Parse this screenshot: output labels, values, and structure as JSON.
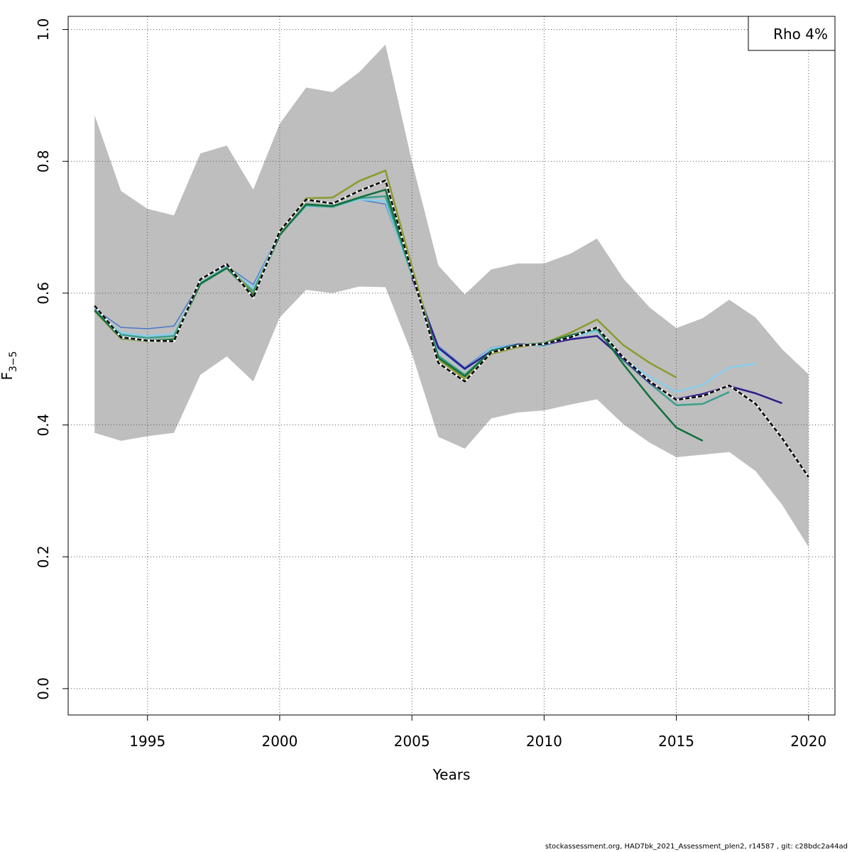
{
  "chart_data": {
    "type": "line",
    "xlabel": "Years",
    "ylabel": "F",
    "ylabel_sub": "3−5",
    "xlim": [
      1992,
      2021
    ],
    "ylim": [
      -0.04,
      1.02
    ],
    "x_ticks": [
      1995,
      2000,
      2005,
      2010,
      2015,
      2020
    ],
    "y_ticks": [
      0.0,
      0.2,
      0.4,
      0.6,
      0.8,
      1.0
    ],
    "y_tick_labels": [
      "0.0",
      "0.2",
      "0.4",
      "0.6",
      "0.8",
      "1.0"
    ],
    "grid": true,
    "legend": {
      "position": "top-right",
      "text": "Rho 4%"
    },
    "band": {
      "color": "#bebebe",
      "x": [
        1993,
        1994,
        1995,
        1996,
        1997,
        1998,
        1999,
        2000,
        2001,
        2002,
        2003,
        2004,
        2005,
        2006,
        2007,
        2008,
        2009,
        2010,
        2011,
        2012,
        2013,
        2014,
        2015,
        2016,
        2017,
        2018,
        2019,
        2020
      ],
      "upper": [
        0.87,
        0.755,
        0.728,
        0.718,
        0.812,
        0.824,
        0.757,
        0.857,
        0.912,
        0.905,
        0.935,
        0.977,
        0.8,
        0.642,
        0.598,
        0.636,
        0.645,
        0.645,
        0.66,
        0.683,
        0.622,
        0.578,
        0.547,
        0.562,
        0.59,
        0.563,
        0.515,
        0.477
      ],
      "lower": [
        0.388,
        0.376,
        0.383,
        0.388,
        0.476,
        0.504,
        0.466,
        0.563,
        0.605,
        0.6,
        0.61,
        0.609,
        0.508,
        0.382,
        0.364,
        0.41,
        0.419,
        0.422,
        0.431,
        0.439,
        0.401,
        0.373,
        0.351,
        0.355,
        0.359,
        0.33,
        0.279,
        0.215
      ]
    },
    "series": [
      {
        "color": "#4a78c9",
        "width": 1.5,
        "dashed": false,
        "x": [
          1993,
          1994,
          1995,
          1996,
          1997,
          1998,
          1999,
          2000,
          2001,
          2002,
          2003,
          2004,
          2005,
          2006,
          2007,
          2008,
          2009,
          2010,
          2011
        ],
        "values": [
          0.576,
          0.548,
          0.546,
          0.55,
          0.616,
          0.641,
          0.613,
          0.691,
          0.733,
          0.733,
          0.742,
          0.735,
          0.628,
          0.52,
          0.487,
          0.517,
          0.523,
          0.522,
          0.532
        ]
      },
      {
        "color": "#87ceeb",
        "width": 2.5,
        "dashed": false,
        "x": [
          1993,
          1994,
          1995,
          1996,
          1997,
          1998,
          1999,
          2000,
          2001,
          2002,
          2003,
          2004,
          2005,
          2006,
          2007,
          2008,
          2009,
          2010,
          2011,
          2012,
          2013,
          2014,
          2015,
          2016,
          2017,
          2018
        ],
        "values": [
          0.574,
          0.54,
          0.535,
          0.538,
          0.616,
          0.64,
          0.608,
          0.69,
          0.732,
          0.731,
          0.742,
          0.74,
          0.626,
          0.515,
          0.484,
          0.516,
          0.522,
          0.52,
          0.533,
          0.542,
          0.5,
          0.473,
          0.45,
          0.461,
          0.487,
          0.493
        ]
      },
      {
        "color": "#3aa08c",
        "width": 2.5,
        "dashed": false,
        "x": [
          1993,
          1994,
          1995,
          1996,
          1997,
          1998,
          1999,
          2000,
          2001,
          2002,
          2003,
          2004,
          2005,
          2006,
          2007,
          2008,
          2009,
          2010,
          2011,
          2012,
          2013,
          2014,
          2015,
          2016,
          2017
        ],
        "values": [
          0.574,
          0.537,
          0.532,
          0.535,
          0.615,
          0.639,
          0.603,
          0.689,
          0.733,
          0.731,
          0.744,
          0.747,
          0.628,
          0.505,
          0.476,
          0.513,
          0.522,
          0.521,
          0.535,
          0.545,
          0.498,
          0.463,
          0.43,
          0.432,
          0.45
        ]
      },
      {
        "color": "#2f1a8c",
        "width": 2.5,
        "dashed": false,
        "x": [
          2005,
          2006,
          2007,
          2008,
          2009,
          2010,
          2011,
          2012,
          2013,
          2014,
          2015,
          2016,
          2017,
          2018,
          2019
        ],
        "values": [
          0.624,
          0.517,
          0.485,
          0.512,
          0.522,
          0.522,
          0.53,
          0.535,
          0.5,
          0.464,
          0.439,
          0.447,
          0.459,
          0.448,
          0.433
        ]
      },
      {
        "color": "#8c9a2c",
        "width": 2.5,
        "dashed": false,
        "x": [
          1993,
          1994,
          1995,
          1996,
          1997,
          1998,
          1999,
          2000,
          2001,
          2002,
          2003,
          2004,
          2005,
          2006,
          2007,
          2008,
          2009,
          2010,
          2011,
          2012,
          2013,
          2014,
          2015
        ],
        "values": [
          0.573,
          0.531,
          0.527,
          0.53,
          0.62,
          0.644,
          0.598,
          0.692,
          0.744,
          0.745,
          0.77,
          0.786,
          0.64,
          0.5,
          0.47,
          0.508,
          0.518,
          0.524,
          0.54,
          0.56,
          0.521,
          0.494,
          0.472
        ]
      },
      {
        "color": "#10703a",
        "width": 2.5,
        "dashed": false,
        "x": [
          1993,
          1994,
          1995,
          1996,
          1997,
          1998,
          1999,
          2000,
          2001,
          2002,
          2003,
          2004,
          2005,
          2006,
          2007,
          2008,
          2009,
          2010,
          2011,
          2012,
          2013,
          2014,
          2015,
          2016
        ],
        "values": [
          0.574,
          0.532,
          0.528,
          0.53,
          0.614,
          0.638,
          0.597,
          0.688,
          0.735,
          0.732,
          0.745,
          0.757,
          0.63,
          0.502,
          0.474,
          0.512,
          0.521,
          0.524,
          0.536,
          0.547,
          0.492,
          0.442,
          0.396,
          0.376
        ]
      },
      {
        "color": "#000000",
        "width": 2.5,
        "dashed": true,
        "x": [
          1993,
          1994,
          1995,
          1996,
          1997,
          1998,
          1999,
          2000,
          2001,
          2002,
          2003,
          2004,
          2005,
          2006,
          2007,
          2008,
          2009,
          2010,
          2011,
          2012,
          2013,
          2014,
          2015,
          2016,
          2017,
          2018,
          2019,
          2020
        ],
        "values": [
          0.581,
          0.533,
          0.528,
          0.527,
          0.621,
          0.644,
          0.593,
          0.694,
          0.742,
          0.736,
          0.755,
          0.771,
          0.632,
          0.494,
          0.466,
          0.51,
          0.52,
          0.523,
          0.533,
          0.548,
          0.502,
          0.466,
          0.438,
          0.444,
          0.46,
          0.432,
          0.38,
          0.321
        ]
      }
    ]
  },
  "footer": "stockassessment.org, HAD7bk_2021_Assessment_plen2, r14587 , git: c28bdc2a44ad"
}
